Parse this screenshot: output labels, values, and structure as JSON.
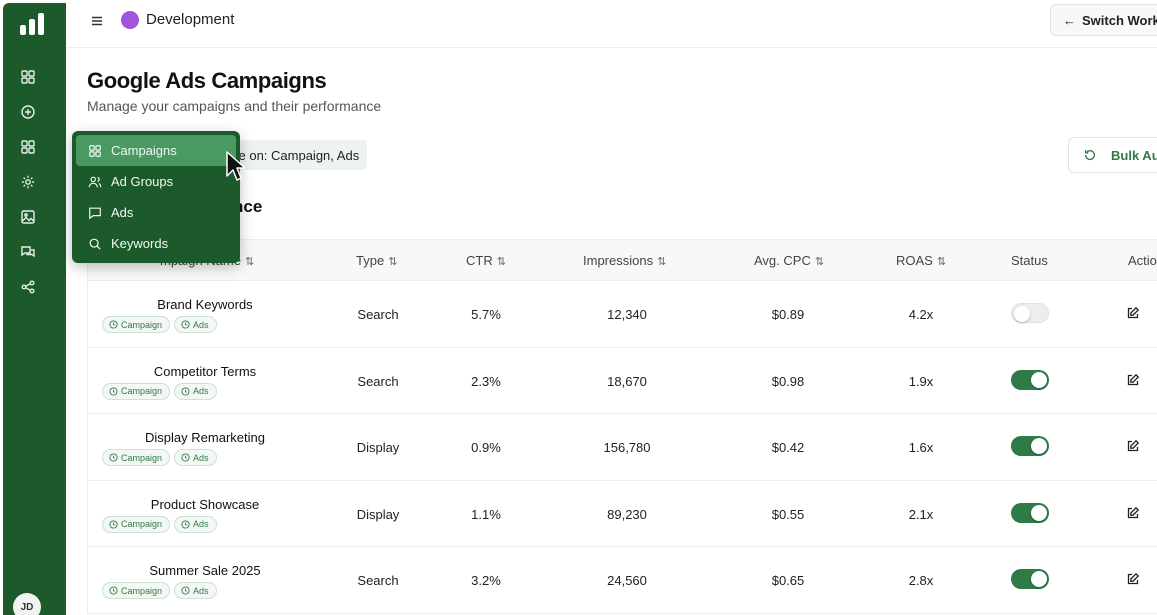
{
  "header": {
    "workspace_name": "Development",
    "workspace_color": "#a155dc",
    "switch_label": "Switch Works"
  },
  "sidebar": {
    "icons": [
      "dashboard-icon",
      "plus-circle-icon",
      "grid-icon",
      "settings-icon",
      "image-icon",
      "messages-icon",
      "share-icon"
    ],
    "avatar": "JD",
    "color": "#1c5a2c"
  },
  "page": {
    "title": "Google Ads Campaigns",
    "subtitle": "Manage your campaigns and their performance",
    "filter_chip": "ve on: Campaign, Ads",
    "bulk_button": "Bulk Aut",
    "section_title": "nce"
  },
  "table": {
    "headers": {
      "name": "mpaign Name",
      "type": "Type",
      "ctr": "CTR",
      "impressions": "Impressions",
      "cpc": "Avg. CPC",
      "roas": "ROAS",
      "status": "Status",
      "actions": "Actio"
    },
    "tag_labels": [
      "Campaign",
      "Ads"
    ],
    "rows": [
      {
        "name": "Brand Keywords",
        "type": "Search",
        "ctr": "5.7%",
        "impressions": "12,340",
        "cpc": "$0.89",
        "roas": "4.2x",
        "status": "off"
      },
      {
        "name": "Competitor Terms",
        "type": "Search",
        "ctr": "2.3%",
        "impressions": "18,670",
        "cpc": "$0.98",
        "roas": "1.9x",
        "status": "on"
      },
      {
        "name": "Display Remarketing",
        "type": "Display",
        "ctr": "0.9%",
        "impressions": "156,780",
        "cpc": "$0.42",
        "roas": "1.6x",
        "status": "on"
      },
      {
        "name": "Product Showcase",
        "type": "Display",
        "ctr": "1.1%",
        "impressions": "89,230",
        "cpc": "$0.55",
        "roas": "2.1x",
        "status": "on"
      },
      {
        "name": "Summer Sale 2025",
        "type": "Search",
        "ctr": "3.2%",
        "impressions": "24,560",
        "cpc": "$0.65",
        "roas": "2.8x",
        "status": "on"
      }
    ]
  },
  "dropdown": {
    "items": [
      {
        "label": "Campaigns",
        "icon": "grid-icon",
        "active": true
      },
      {
        "label": "Ad Groups",
        "icon": "users-icon",
        "active": false
      },
      {
        "label": "Ads",
        "icon": "message-icon",
        "active": false
      },
      {
        "label": "Keywords",
        "icon": "search-icon",
        "active": false
      }
    ]
  },
  "colors": {
    "accent": "#2f7a46",
    "dropdown_active": "#4a9862"
  }
}
